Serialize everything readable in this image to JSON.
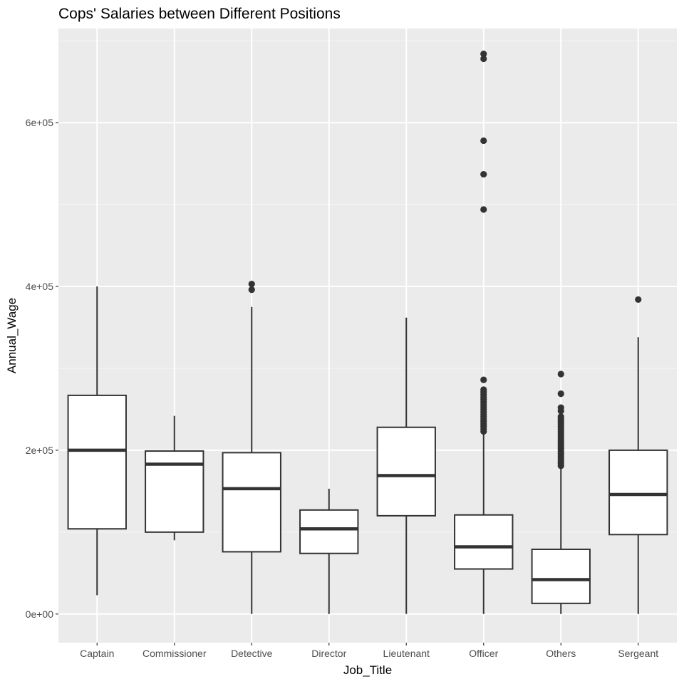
{
  "chart_data": {
    "type": "boxplot",
    "title": "Cops' Salaries between Different Positions",
    "xlabel": "Job_Title",
    "ylabel": "Annual_Wage",
    "ylim": [
      -35000,
      715000
    ],
    "yticks": [
      0,
      200000,
      400000,
      600000
    ],
    "ytick_labels": [
      "0e+00",
      "2e+05",
      "4e+05",
      "6e+05"
    ],
    "grid": true,
    "categories": [
      "Captain",
      "Commissioner",
      "Detective",
      "Director",
      "Lieutenant",
      "Officer",
      "Others",
      "Sergeant"
    ],
    "boxes": [
      {
        "category": "Captain",
        "min": 23000,
        "q1": 104000,
        "median": 200000,
        "q3": 267000,
        "max": 400000,
        "outliers": []
      },
      {
        "category": "Commissioner",
        "min": 90000,
        "q1": 100000,
        "median": 183000,
        "q3": 199000,
        "max": 242000,
        "outliers": []
      },
      {
        "category": "Detective",
        "min": 0,
        "q1": 76000,
        "median": 153000,
        "q3": 197000,
        "max": 375000,
        "outliers": [
          396000,
          403000
        ]
      },
      {
        "category": "Director",
        "min": 0,
        "q1": 74000,
        "median": 104000,
        "q3": 127000,
        "max": 153000,
        "outliers": []
      },
      {
        "category": "Lieutenant",
        "min": 0,
        "q1": 120000,
        "median": 169000,
        "q3": 228000,
        "max": 362000,
        "outliers": []
      },
      {
        "category": "Officer",
        "min": 0,
        "q1": 55000,
        "median": 82000,
        "q3": 121000,
        "max": 220000,
        "outliers": [
          223000,
          226000,
          229000,
          232000,
          235000,
          238000,
          241000,
          244000,
          247000,
          250000,
          253000,
          256000,
          259000,
          262000,
          265000,
          268000,
          271000,
          274000,
          286000,
          494000,
          537000,
          578000,
          678000,
          684000
        ]
      },
      {
        "category": "Others",
        "min": 0,
        "q1": 13000,
        "median": 42000,
        "q3": 79000,
        "max": 178000,
        "outliers": [
          181000,
          184000,
          187000,
          190000,
          193000,
          196000,
          199000,
          202000,
          205000,
          208000,
          211000,
          214000,
          217000,
          220000,
          223000,
          226000,
          229000,
          232000,
          235000,
          238000,
          241000,
          248000,
          252000,
          269000,
          293000
        ]
      },
      {
        "category": "Sergeant",
        "min": 0,
        "q1": 97000,
        "median": 146000,
        "q3": 200000,
        "max": 338000,
        "outliers": [
          384000
        ]
      }
    ]
  },
  "colors": {
    "panel_background": "#ebebeb",
    "grid_major": "#ffffff",
    "grid_minor": "#f5f5f5",
    "box_stroke": "#333333",
    "box_fill": "#ffffff",
    "outlier": "#333333",
    "tick_label": "#4d4d4d",
    "text": "#000000"
  }
}
